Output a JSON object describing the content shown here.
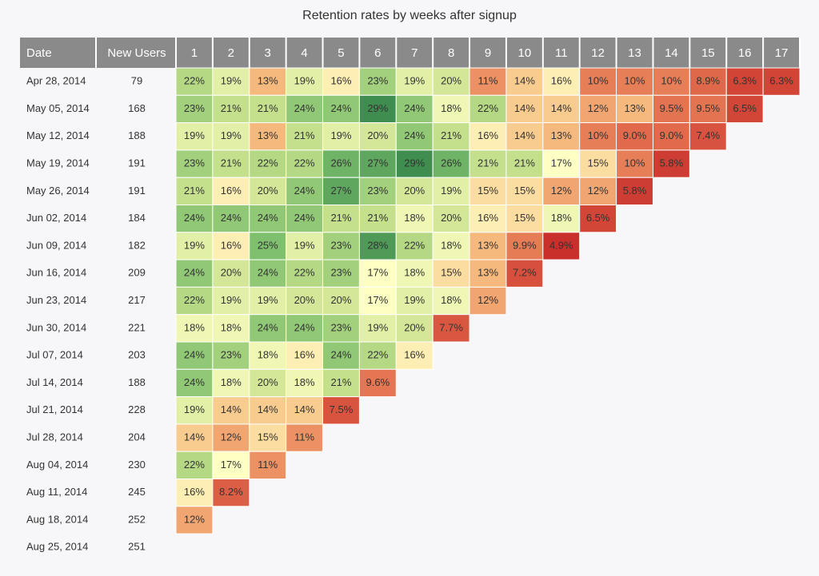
{
  "chart_data": {
    "type": "heatmap",
    "title": "Retention rates by weeks after signup",
    "row_header": "Date",
    "count_header": "New Users",
    "x": [
      1,
      2,
      3,
      4,
      5,
      6,
      7,
      8,
      9,
      10,
      11,
      12,
      13,
      14,
      15,
      16,
      17
    ],
    "categories": [
      "Apr 28, 2014",
      "May 05, 2014",
      "May 12, 2014",
      "May 19, 2014",
      "May 26, 2014",
      "Jun 02, 2014",
      "Jun 09, 2014",
      "Jun 16, 2014",
      "Jun 23, 2014",
      "Jun 30, 2014",
      "Jul 07, 2014",
      "Jul 14, 2014",
      "Jul 21, 2014",
      "Jul 28, 2014",
      "Aug 04, 2014",
      "Aug 11, 2014",
      "Aug 18, 2014",
      "Aug 25, 2014"
    ],
    "counts": [
      79,
      168,
      188,
      191,
      191,
      184,
      182,
      209,
      217,
      221,
      203,
      188,
      228,
      204,
      230,
      245,
      252,
      251
    ],
    "values": [
      [
        22,
        19,
        13,
        19,
        16,
        23,
        19,
        20,
        11,
        14,
        16,
        10,
        10,
        10,
        8.9,
        6.3,
        6.3
      ],
      [
        23,
        21,
        21,
        24,
        24,
        29,
        24,
        18,
        22,
        14,
        14,
        12,
        13,
        9.5,
        9.5,
        6.5
      ],
      [
        19,
        19,
        13,
        21,
        19,
        20,
        24,
        21,
        16,
        14,
        13,
        10,
        9,
        9,
        7.4
      ],
      [
        23,
        21,
        22,
        22,
        26,
        27,
        29,
        26,
        21,
        21,
        17,
        15,
        10,
        5.8
      ],
      [
        21,
        16,
        20,
        24,
        27,
        23,
        20,
        19,
        15,
        15,
        12,
        12,
        5.8
      ],
      [
        24,
        24,
        24,
        24,
        21,
        21,
        18,
        20,
        16,
        15,
        18,
        6.5
      ],
      [
        19,
        16,
        25,
        19,
        23,
        28,
        22,
        18,
        13,
        9.9,
        4.9
      ],
      [
        24,
        20,
        24,
        22,
        23,
        17,
        18,
        15,
        13,
        7.2
      ],
      [
        22,
        19,
        19,
        20,
        20,
        17,
        19,
        18,
        12
      ],
      [
        18,
        18,
        24,
        24,
        23,
        19,
        20,
        7.7
      ],
      [
        24,
        23,
        18,
        16,
        24,
        22,
        16
      ],
      [
        24,
        18,
        20,
        18,
        21,
        9.6
      ],
      [
        19,
        14,
        14,
        14,
        7.5
      ],
      [
        14,
        12,
        15,
        11
      ],
      [
        22,
        17,
        11
      ],
      [
        16,
        8.2
      ],
      [
        12
      ],
      []
    ],
    "value_labels": [
      [
        "22%",
        "19%",
        "13%",
        "19%",
        "16%",
        "23%",
        "19%",
        "20%",
        "11%",
        "14%",
        "16%",
        "10%",
        "10%",
        "10%",
        "8.9%",
        "6.3%",
        "6.3%"
      ],
      [
        "23%",
        "21%",
        "21%",
        "24%",
        "24%",
        "29%",
        "24%",
        "18%",
        "22%",
        "14%",
        "14%",
        "12%",
        "13%",
        "9.5%",
        "9.5%",
        "6.5%"
      ],
      [
        "19%",
        "19%",
        "13%",
        "21%",
        "19%",
        "20%",
        "24%",
        "21%",
        "16%",
        "14%",
        "13%",
        "10%",
        "9.0%",
        "9.0%",
        "7.4%"
      ],
      [
        "23%",
        "21%",
        "22%",
        "22%",
        "26%",
        "27%",
        "29%",
        "26%",
        "21%",
        "21%",
        "17%",
        "15%",
        "10%",
        "5.8%"
      ],
      [
        "21%",
        "16%",
        "20%",
        "24%",
        "27%",
        "23%",
        "20%",
        "19%",
        "15%",
        "15%",
        "12%",
        "12%",
        "5.8%"
      ],
      [
        "24%",
        "24%",
        "24%",
        "24%",
        "21%",
        "21%",
        "18%",
        "20%",
        "16%",
        "15%",
        "18%",
        "6.5%"
      ],
      [
        "19%",
        "16%",
        "25%",
        "19%",
        "23%",
        "28%",
        "22%",
        "18%",
        "13%",
        "9.9%",
        "4.9%"
      ],
      [
        "24%",
        "20%",
        "24%",
        "22%",
        "23%",
        "17%",
        "18%",
        "15%",
        "13%",
        "7.2%"
      ],
      [
        "22%",
        "19%",
        "19%",
        "20%",
        "20%",
        "17%",
        "19%",
        "18%",
        "12%"
      ],
      [
        "18%",
        "18%",
        "24%",
        "24%",
        "23%",
        "19%",
        "20%",
        "7.7%"
      ],
      [
        "24%",
        "23%",
        "18%",
        "16%",
        "24%",
        "22%",
        "16%"
      ],
      [
        "24%",
        "18%",
        "20%",
        "18%",
        "21%",
        "9.6%"
      ],
      [
        "19%",
        "14%",
        "14%",
        "14%",
        "7.5%"
      ],
      [
        "14%",
        "12%",
        "15%",
        "11%"
      ],
      [
        "22%",
        "17%",
        "11%"
      ],
      [
        "16%",
        "8.2%"
      ],
      [
        "12%"
      ],
      []
    ],
    "colors": [
      "#c9302c",
      "#e0684a",
      "#f6b87c",
      "#ffffc4",
      "#c6e08c",
      "#7fc06e",
      "#3f8d4f"
    ],
    "header_color": "#8a8a8a"
  }
}
